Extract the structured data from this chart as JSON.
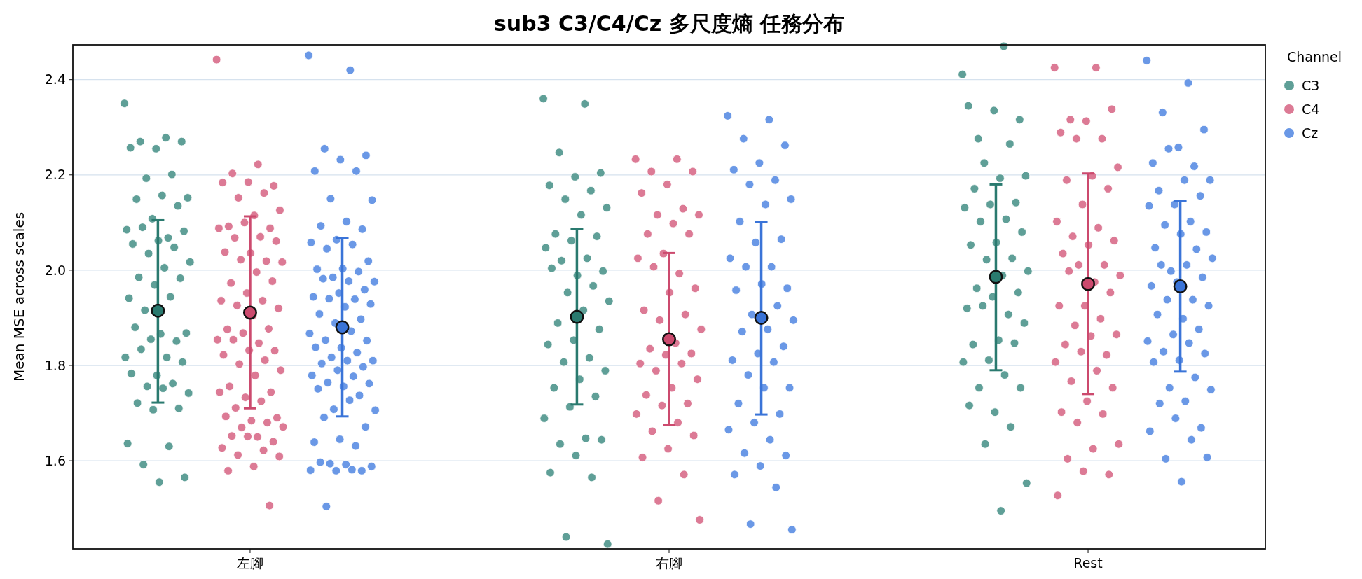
{
  "chart_data": {
    "type": "scatter",
    "title": "sub3 C3/C4/Cz 多尺度熵 任務分布",
    "ylabel": "Mean MSE across scales",
    "legend_title": "Channel",
    "legend": "top right",
    "grid": "y",
    "marker": "circle",
    "categories": [
      "左腳",
      "右腳",
      "Rest"
    ],
    "ylim": [
      1.415,
      2.473
    ],
    "yticks": [
      1.6,
      1.8,
      {
        "value": 2,
        "label": "2.0"
      },
      2.2,
      2.4
    ],
    "series": [
      {
        "name": "C3",
        "color": "#5f9f97",
        "x": [
          "左腳",
          "左腳",
          "左腳",
          "左腳",
          "左腳",
          "左腳",
          "左腳",
          "左腳",
          "左腳",
          "左腳",
          "左腳",
          "左腳",
          "左腳",
          "左腳",
          "左腳",
          "左腳",
          "左腳",
          "左腳",
          "左腳",
          "左腳",
          "左腳",
          "左腳",
          "左腳",
          "左腳",
          "左腳",
          "左腳",
          "左腳",
          "左腳",
          "左腳",
          "左腳",
          "左腳",
          "左腳",
          "左腳",
          "左腳",
          "左腳",
          "左腳",
          "左腳",
          "左腳",
          "左腳",
          "左腳",
          "左腳",
          "左腳",
          "左腳",
          "左腳",
          "左腳",
          "左腳",
          "左腳",
          "左腳",
          "左腳",
          "左腳",
          "左腳",
          "左腳",
          "右腳",
          "右腳",
          "右腳",
          "右腳",
          "右腳",
          "右腳",
          "右腳",
          "右腳",
          "右腳",
          "右腳",
          "右腳",
          "右腳",
          "右腳",
          "右腳",
          "右腳",
          "右腳",
          "右腳",
          "右腳",
          "右腳",
          "右腳",
          "右腳",
          "右腳",
          "右腳",
          "右腳",
          "右腳",
          "右腳",
          "右腳",
          "右腳",
          "右腳",
          "右腳",
          "右腳",
          "右腳",
          "右腳",
          "右腳",
          "右腳",
          "右腳",
          "右腳",
          "右腳",
          "右腳",
          "右腳",
          "右腳",
          "右腳",
          "右腳",
          "Rest",
          "Rest",
          "Rest",
          "Rest",
          "Rest",
          "Rest",
          "Rest",
          "Rest",
          "Rest",
          "Rest",
          "Rest",
          "Rest",
          "Rest",
          "Rest",
          "Rest",
          "Rest",
          "Rest",
          "Rest",
          "Rest",
          "Rest",
          "Rest",
          "Rest",
          "Rest",
          "Rest",
          "Rest",
          "Rest",
          "Rest",
          "Rest",
          "Rest",
          "Rest",
          "Rest",
          "Rest",
          "Rest",
          "Rest",
          "Rest",
          "Rest",
          "Rest",
          "Rest",
          "Rest",
          "Rest",
          "Rest",
          "Rest",
          "Rest",
          "Rest"
        ],
        "values": [
          2.35,
          2.278,
          2.27,
          2.27,
          2.255,
          2.257,
          2.201,
          2.193,
          2.152,
          2.157,
          2.149,
          2.135,
          2.108,
          2.085,
          2.068,
          2.09,
          2.082,
          2.062,
          2.055,
          2.048,
          2.035,
          2.017,
          2.005,
          1.985,
          1.983,
          1.969,
          1.941,
          1.944,
          1.916,
          1.868,
          1.866,
          1.88,
          1.851,
          1.855,
          1.817,
          1.817,
          1.834,
          1.807,
          1.779,
          1.783,
          1.762,
          1.756,
          1.742,
          1.752,
          1.721,
          1.71,
          1.707,
          1.636,
          1.63,
          1.592,
          1.565,
          1.555,
          2.36,
          2.349,
          2.247,
          2.204,
          2.196,
          2.178,
          2.167,
          2.149,
          2.131,
          2.116,
          2.076,
          2.071,
          2.062,
          2.047,
          2.025,
          2.02,
          1.998,
          1.989,
          2.004,
          1.967,
          1.953,
          1.935,
          1.916,
          1.889,
          1.876,
          1.853,
          1.844,
          1.816,
          1.807,
          1.789,
          1.771,
          1.753,
          1.735,
          1.713,
          1.689,
          1.647,
          1.635,
          1.644,
          1.611,
          1.575,
          1.565,
          1.44,
          1.425,
          2.411,
          2.47,
          2.276,
          2.316,
          2.335,
          2.345,
          2.265,
          2.225,
          2.198,
          2.193,
          2.171,
          2.142,
          2.138,
          2.131,
          2.107,
          2.102,
          2.08,
          2.058,
          2.053,
          2.025,
          2.022,
          1.998,
          1.989,
          1.962,
          1.953,
          1.944,
          1.92,
          1.907,
          1.925,
          1.889,
          1.853,
          1.844,
          1.847,
          1.811,
          1.807,
          1.78,
          1.753,
          1.753,
          1.702,
          1.716,
          1.671,
          1.635,
          1.553,
          1.495
        ]
      },
      {
        "name": "C4",
        "color": "#dc7a95",
        "x": [
          "左腳",
          "左腳",
          "左腳",
          "左腳",
          "左腳",
          "左腳",
          "左腳",
          "左腳",
          "左腳",
          "左腳",
          "左腳",
          "左腳",
          "左腳",
          "左腳",
          "左腳",
          "左腳",
          "左腳",
          "左腳",
          "左腳",
          "左腳",
          "左腳",
          "左腳",
          "左腳",
          "左腳",
          "左腳",
          "左腳",
          "左腳",
          "左腳",
          "左腳",
          "左腳",
          "左腳",
          "左腳",
          "左腳",
          "左腳",
          "左腳",
          "左腳",
          "左腳",
          "左腳",
          "左腳",
          "左腳",
          "左腳",
          "左腳",
          "左腳",
          "左腳",
          "左腳",
          "左腳",
          "左腳",
          "左腳",
          "左腳",
          "左腳",
          "左腳",
          "左腳",
          "左腳",
          "左腳",
          "左腳",
          "左腳",
          "左腳",
          "左腳",
          "左腳",
          "左腳",
          "左腳",
          "左腳",
          "左腳",
          "左腳",
          "左腳",
          "左腳",
          "左腳",
          "右腳",
          "右腳",
          "右腳",
          "右腳",
          "右腳",
          "右腳",
          "右腳",
          "右腳",
          "右腳",
          "右腳",
          "右腳",
          "右腳",
          "右腳",
          "右腳",
          "右腳",
          "右腳",
          "右腳",
          "右腳",
          "右腳",
          "右腳",
          "右腳",
          "右腳",
          "右腳",
          "右腳",
          "右腳",
          "右腳",
          "右腳",
          "右腳",
          "右腳",
          "右腳",
          "右腳",
          "右腳",
          "右腳",
          "右腳",
          "右腳",
          "右腳",
          "右腳",
          "右腳",
          "右腳",
          "右腳",
          "右腳",
          "右腳",
          "右腳",
          "Rest",
          "Rest",
          "Rest",
          "Rest",
          "Rest",
          "Rest",
          "Rest",
          "Rest",
          "Rest",
          "Rest",
          "Rest",
          "Rest",
          "Rest",
          "Rest",
          "Rest",
          "Rest",
          "Rest",
          "Rest",
          "Rest",
          "Rest",
          "Rest",
          "Rest",
          "Rest",
          "Rest",
          "Rest",
          "Rest",
          "Rest",
          "Rest",
          "Rest",
          "Rest",
          "Rest",
          "Rest",
          "Rest",
          "Rest",
          "Rest",
          "Rest",
          "Rest",
          "Rest",
          "Rest",
          "Rest",
          "Rest",
          "Rest",
          "Rest",
          "Rest",
          "Rest",
          "Rest",
          "Rest",
          "Rest"
        ],
        "values": [
          2.442,
          2.222,
          2.203,
          2.177,
          2.185,
          2.184,
          2.162,
          2.152,
          2.126,
          2.115,
          2.092,
          2.088,
          2.1,
          2.088,
          2.07,
          2.068,
          2.061,
          2.036,
          2.038,
          2.019,
          2.022,
          2.017,
          1.996,
          1.973,
          1.977,
          1.952,
          1.936,
          1.936,
          1.926,
          1.92,
          1.905,
          1.876,
          1.877,
          1.868,
          1.854,
          1.847,
          1.854,
          1.831,
          1.832,
          1.822,
          1.811,
          1.803,
          1.79,
          1.779,
          1.756,
          1.744,
          1.733,
          1.744,
          1.725,
          1.711,
          1.69,
          1.684,
          1.693,
          1.68,
          1.67,
          1.671,
          1.65,
          1.652,
          1.64,
          1.651,
          1.627,
          1.622,
          1.612,
          1.609,
          1.588,
          1.579,
          1.506,
          2.233,
          2.233,
          2.207,
          2.207,
          2.18,
          2.162,
          2.129,
          2.116,
          2.116,
          2.098,
          2.076,
          2.076,
          2.035,
          2.025,
          1.993,
          2.007,
          1.962,
          1.953,
          1.916,
          1.907,
          1.895,
          1.876,
          1.847,
          1.835,
          1.825,
          1.822,
          1.804,
          1.804,
          1.789,
          1.771,
          1.753,
          1.738,
          1.72,
          1.716,
          1.698,
          1.68,
          1.662,
          1.653,
          1.625,
          1.607,
          1.571,
          1.516,
          1.476,
          2.425,
          2.425,
          2.316,
          2.338,
          2.313,
          2.289,
          2.276,
          2.276,
          2.216,
          2.198,
          2.189,
          2.171,
          2.138,
          2.102,
          2.089,
          2.071,
          2.062,
          2.053,
          2.035,
          2.011,
          2.011,
          1.989,
          1.975,
          1.998,
          1.953,
          1.925,
          1.925,
          1.898,
          1.884,
          1.865,
          1.862,
          1.844,
          1.822,
          1.829,
          1.807,
          1.789,
          1.767,
          1.753,
          1.725,
          1.702,
          1.698,
          1.68,
          1.635,
          1.625,
          1.604,
          1.571,
          1.578,
          1.527
        ]
      },
      {
        "name": "Cz",
        "color": "#6a98e6",
        "x": [
          "左腳",
          "左腳",
          "左腳",
          "左腳",
          "左腳",
          "左腳",
          "左腳",
          "左腳",
          "左腳",
          "左腳",
          "左腳",
          "左腳",
          "左腳",
          "左腳",
          "左腳",
          "左腳",
          "左腳",
          "左腳",
          "左腳",
          "左腳",
          "左腳",
          "左腳",
          "左腳",
          "左腳",
          "左腳",
          "左腳",
          "左腳",
          "左腳",
          "左腳",
          "左腳",
          "左腳",
          "左腳",
          "左腳",
          "左腳",
          "左腳",
          "左腳",
          "左腳",
          "左腳",
          "左腳",
          "左腳",
          "左腳",
          "左腳",
          "左腳",
          "左腳",
          "左腳",
          "左腳",
          "左腳",
          "左腳",
          "左腳",
          "左腳",
          "左腳",
          "左腳",
          "左腳",
          "左腳",
          "左腳",
          "左腳",
          "左腳",
          "左腳",
          "左腳",
          "左腳",
          "左腳",
          "左腳",
          "左腳",
          "左腳",
          "左腳",
          "左腳",
          "左腳",
          "左腳",
          "左腳",
          "左腳",
          "左腳",
          "右腳",
          "右腳",
          "右腳",
          "右腳",
          "右腳",
          "右腳",
          "右腳",
          "右腳",
          "右腳",
          "右腳",
          "右腳",
          "右腳",
          "右腳",
          "右腳",
          "右腳",
          "右腳",
          "右腳",
          "右腳",
          "右腳",
          "右腳",
          "右腳",
          "右腳",
          "右腳",
          "右腳",
          "右腳",
          "右腳",
          "右腳",
          "右腳",
          "右腳",
          "右腳",
          "右腳",
          "右腳",
          "右腳",
          "右腳",
          "右腳",
          "右腳",
          "右腳",
          "右腳",
          "右腳",
          "右腳",
          "右腳",
          "右腳",
          "右腳",
          "Rest",
          "Rest",
          "Rest",
          "Rest",
          "Rest",
          "Rest",
          "Rest",
          "Rest",
          "Rest",
          "Rest",
          "Rest",
          "Rest",
          "Rest",
          "Rest",
          "Rest",
          "Rest",
          "Rest",
          "Rest",
          "Rest",
          "Rest",
          "Rest",
          "Rest",
          "Rest",
          "Rest",
          "Rest",
          "Rest",
          "Rest",
          "Rest",
          "Rest",
          "Rest",
          "Rest",
          "Rest",
          "Rest",
          "Rest",
          "Rest",
          "Rest",
          "Rest",
          "Rest",
          "Rest",
          "Rest",
          "Rest",
          "Rest",
          "Rest",
          "Rest",
          "Rest",
          "Rest",
          "Rest",
          "Rest",
          "Rest",
          "Rest",
          "Rest",
          "Rest"
        ],
        "values": [
          2.451,
          2.42,
          2.255,
          2.241,
          2.232,
          2.208,
          2.208,
          2.15,
          2.147,
          2.102,
          2.093,
          2.086,
          2.064,
          2.058,
          2.054,
          2.045,
          2.019,
          2.003,
          2.002,
          1.997,
          1.985,
          1.976,
          1.977,
          1.982,
          1.959,
          1.952,
          1.944,
          1.939,
          1.94,
          1.929,
          1.923,
          1.908,
          1.897,
          1.889,
          1.867,
          1.872,
          1.853,
          1.852,
          1.837,
          1.838,
          1.827,
          1.817,
          1.81,
          1.81,
          1.804,
          1.797,
          1.79,
          1.779,
          1.777,
          1.764,
          1.762,
          1.756,
          1.751,
          1.737,
          1.708,
          1.706,
          1.727,
          1.691,
          1.671,
          1.645,
          1.639,
          1.631,
          1.594,
          1.588,
          1.592,
          1.597,
          1.579,
          1.579,
          1.58,
          1.581,
          1.504,
          2.324,
          2.316,
          2.276,
          2.262,
          2.225,
          2.211,
          2.189,
          2.18,
          2.149,
          2.138,
          2.102,
          2.065,
          2.058,
          2.025,
          2.007,
          2.007,
          1.962,
          1.971,
          1.958,
          1.925,
          1.907,
          1.895,
          1.876,
          1.871,
          1.84,
          1.825,
          1.811,
          1.807,
          1.78,
          1.753,
          1.753,
          1.72,
          1.698,
          1.68,
          1.665,
          1.644,
          1.616,
          1.611,
          1.589,
          1.571,
          1.544,
          1.467,
          1.455,
          2.44,
          2.393,
          2.331,
          2.295,
          2.258,
          2.225,
          2.218,
          2.255,
          2.189,
          2.189,
          2.167,
          2.156,
          2.138,
          2.135,
          2.102,
          2.095,
          2.08,
          2.076,
          2.047,
          2.044,
          1.998,
          2.025,
          2.011,
          2.011,
          1.985,
          1.975,
          1.967,
          1.938,
          1.938,
          1.925,
          1.898,
          1.907,
          1.876,
          1.865,
          1.851,
          1.847,
          1.829,
          1.825,
          1.811,
          1.807,
          1.775,
          1.753,
          1.749,
          1.725,
          1.72,
          1.669,
          1.689,
          1.662,
          1.644,
          1.604,
          1.607,
          1.556
        ]
      },
      {
        "color": "#2a7a6f",
        "x": [
          "左腳",
          "右腳",
          "Rest"
        ],
        "values": [
          1.915,
          1.902,
          1.986
        ],
        "errors": [
          [
            1.722,
            2.105
          ],
          [
            1.718,
            2.087
          ],
          [
            1.79,
            2.18
          ]
        ]
      },
      {
        "color": "#cc4a6e",
        "x": [
          "左腳",
          "右腳",
          "Rest"
        ],
        "values": [
          1.911,
          1.855,
          1.971
        ],
        "errors": [
          [
            1.71,
            2.113
          ],
          [
            1.675,
            2.036
          ],
          [
            1.74,
            2.203
          ]
        ]
      },
      {
        "color": "#3a74d8",
        "x": [
          "左腳",
          "右腳",
          "Rest"
        ],
        "values": [
          1.88,
          1.9,
          1.966
        ],
        "errors": [
          [
            1.693,
            2.068
          ],
          [
            1.697,
            2.102
          ],
          [
            1.787,
            2.146
          ]
        ]
      }
    ]
  }
}
